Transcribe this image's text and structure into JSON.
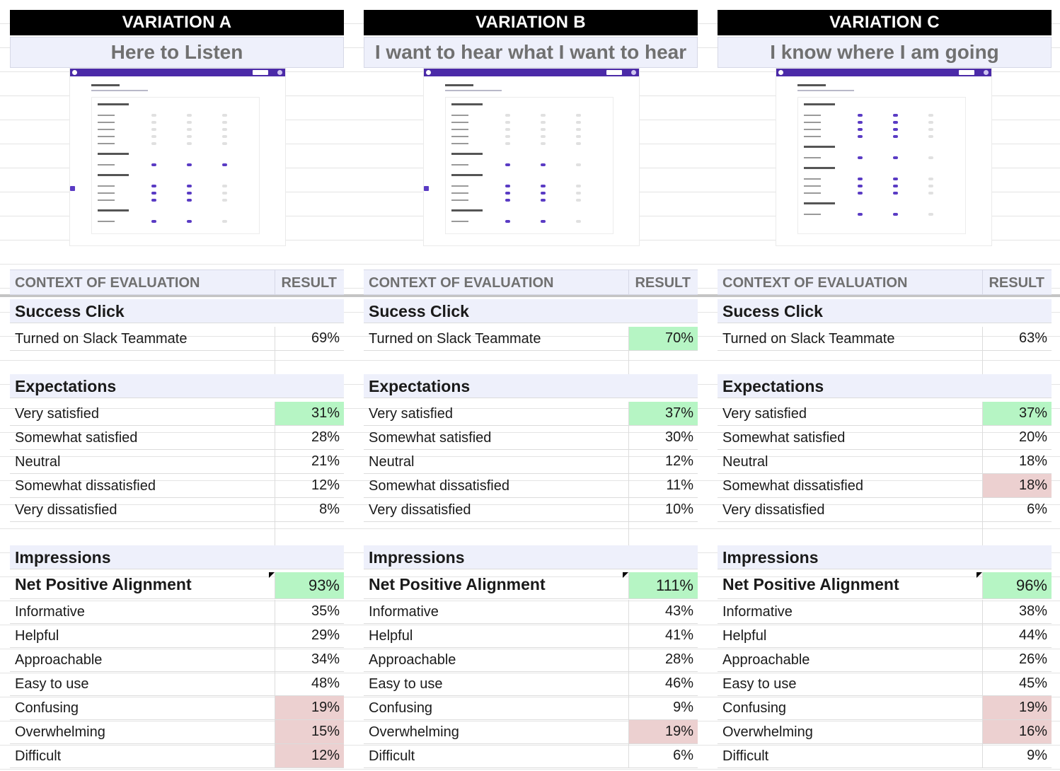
{
  "variations": [
    {
      "title": "VARIATION A",
      "subtitle": "Here to Listen",
      "header": {
        "context": "CONTEXT OF EVALUATION",
        "result": "RESULT"
      },
      "success": {
        "title": "Success Click",
        "label": "Turned on Slack Teammate",
        "value": "69%",
        "highlight": "none"
      },
      "expectations": {
        "title": "Expectations",
        "rows": [
          {
            "label": "Very satisfied",
            "value": "31%",
            "highlight": "green"
          },
          {
            "label": "Somewhat satisfied",
            "value": "28%",
            "highlight": "none"
          },
          {
            "label": "Neutral",
            "value": "21%",
            "highlight": "none"
          },
          {
            "label": "Somewhat dissatisfied",
            "value": "12%",
            "highlight": "none"
          },
          {
            "label": "Very dissatisfied",
            "value": "8%",
            "highlight": "none"
          }
        ]
      },
      "impressions": {
        "title": "Impressions",
        "net": {
          "label": "Net Positive Alignment",
          "value": "93%",
          "highlight": "green"
        },
        "rows": [
          {
            "label": "Informative",
            "value": "35%",
            "highlight": "none"
          },
          {
            "label": "Helpful",
            "value": "29%",
            "highlight": "none"
          },
          {
            "label": "Approachable",
            "value": "34%",
            "highlight": "none"
          },
          {
            "label": "Easy to use",
            "value": "48%",
            "highlight": "none"
          },
          {
            "label": "Confusing",
            "value": "19%",
            "highlight": "red"
          },
          {
            "label": "Overwhelming",
            "value": "15%",
            "highlight": "red"
          },
          {
            "label": "Difficult",
            "value": "12%",
            "highlight": "red"
          }
        ]
      }
    },
    {
      "title": "VARIATION B",
      "subtitle": "I want to hear what I want to hear",
      "header": {
        "context": "CONTEXT OF EVALUATION",
        "result": "RESULT"
      },
      "success": {
        "title": "Sucess Click",
        "label": "Turned on Slack Teammate",
        "value": "70%",
        "highlight": "green"
      },
      "expectations": {
        "title": "Expectations",
        "rows": [
          {
            "label": "Very satisfied",
            "value": "37%",
            "highlight": "green"
          },
          {
            "label": "Somewhat satisfied",
            "value": "30%",
            "highlight": "none"
          },
          {
            "label": "Neutral",
            "value": "12%",
            "highlight": "none"
          },
          {
            "label": "Somewhat dissatisfied",
            "value": "11%",
            "highlight": "none"
          },
          {
            "label": "Very dissatisfied",
            "value": "10%",
            "highlight": "none"
          }
        ]
      },
      "impressions": {
        "title": "Impressions",
        "net": {
          "label": "Net Positive Alignment",
          "value": "111%",
          "highlight": "green"
        },
        "rows": [
          {
            "label": "Informative",
            "value": "43%",
            "highlight": "none"
          },
          {
            "label": "Helpful",
            "value": "41%",
            "highlight": "none"
          },
          {
            "label": "Approachable",
            "value": "28%",
            "highlight": "none"
          },
          {
            "label": "Easy to use",
            "value": "46%",
            "highlight": "none"
          },
          {
            "label": "Confusing",
            "value": "9%",
            "highlight": "none"
          },
          {
            "label": "Overwhelming",
            "value": "19%",
            "highlight": "red"
          },
          {
            "label": "Difficult",
            "value": "6%",
            "highlight": "none"
          }
        ]
      }
    },
    {
      "title": "VARIATION C",
      "subtitle": "I know where I am going",
      "header": {
        "context": "CONTEXT OF EVALUATION",
        "result": "RESULT"
      },
      "success": {
        "title": "Sucess Click",
        "label": "Turned on Slack Teammate",
        "value": "63%",
        "highlight": "none"
      },
      "expectations": {
        "title": "Expectations",
        "rows": [
          {
            "label": "Very satisfied",
            "value": "37%",
            "highlight": "green"
          },
          {
            "label": "Somewhat satisfied",
            "value": "20%",
            "highlight": "none"
          },
          {
            "label": "Neutral",
            "value": "18%",
            "highlight": "none"
          },
          {
            "label": "Somewhat dissatisfied",
            "value": "18%",
            "highlight": "red"
          },
          {
            "label": "Very dissatisfied",
            "value": "6%",
            "highlight": "none"
          }
        ]
      },
      "impressions": {
        "title": "Impressions",
        "net": {
          "label": "Net Positive Alignment",
          "value": "96%",
          "highlight": "green"
        },
        "rows": [
          {
            "label": "Informative",
            "value": "38%",
            "highlight": "none"
          },
          {
            "label": "Helpful",
            "value": "44%",
            "highlight": "none"
          },
          {
            "label": "Approachable",
            "value": "26%",
            "highlight": "none"
          },
          {
            "label": "Easy to use",
            "value": "45%",
            "highlight": "none"
          },
          {
            "label": "Confusing",
            "value": "19%",
            "highlight": "red"
          },
          {
            "label": "Overwhelming",
            "value": "16%",
            "highlight": "red"
          },
          {
            "label": "Difficult",
            "value": "9%",
            "highlight": "none"
          }
        ]
      }
    }
  ],
  "colors": {
    "green": "#b6f5c4",
    "red": "#ecd0d0",
    "section": "#eef0fb",
    "brand": "#4b2aa8"
  }
}
